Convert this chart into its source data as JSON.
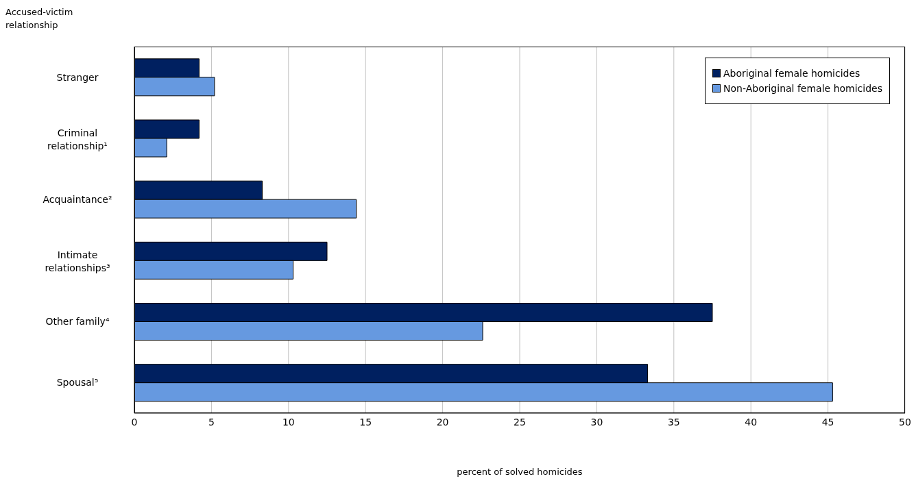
{
  "chart_data": {
    "type": "bar",
    "orientation": "horizontal",
    "ylabel": "Accused-victim relationship",
    "xlabel": "percent of solved homicides",
    "categories": [
      "Stranger",
      "Criminal relationship¹",
      "Acquaintance²",
      "Intimate relationships³",
      "Other family⁴",
      "Spousal⁵"
    ],
    "series": [
      {
        "name": "Aboriginal female homicides",
        "color": "#002060",
        "values": [
          4.2,
          4.2,
          8.3,
          12.5,
          37.5,
          33.3
        ]
      },
      {
        "name": "Non-Aboriginal female homicides",
        "color": "#6699e0",
        "values": [
          5.2,
          2.1,
          14.4,
          10.3,
          22.6,
          45.3
        ]
      }
    ],
    "xlim": [
      0,
      50
    ],
    "xticks": [
      0,
      5,
      10,
      15,
      20,
      25,
      30,
      35,
      40,
      45,
      50
    ],
    "grid": "x",
    "legend": "top right"
  }
}
